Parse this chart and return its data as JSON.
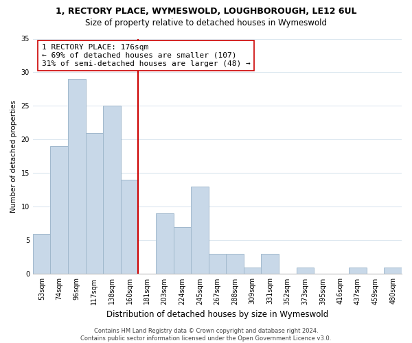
{
  "title": "1, RECTORY PLACE, WYMESWOLD, LOUGHBOROUGH, LE12 6UL",
  "subtitle": "Size of property relative to detached houses in Wymeswold",
  "xlabel": "Distribution of detached houses by size in Wymeswold",
  "ylabel": "Number of detached properties",
  "bar_color": "#c8d8e8",
  "bar_edge_color": "#a0b8cc",
  "bin_labels": [
    "53sqm",
    "74sqm",
    "96sqm",
    "117sqm",
    "138sqm",
    "160sqm",
    "181sqm",
    "203sqm",
    "224sqm",
    "245sqm",
    "267sqm",
    "288sqm",
    "309sqm",
    "331sqm",
    "352sqm",
    "373sqm",
    "395sqm",
    "416sqm",
    "437sqm",
    "459sqm",
    "480sqm"
  ],
  "bar_heights": [
    6,
    19,
    29,
    21,
    25,
    14,
    0,
    9,
    7,
    13,
    3,
    3,
    1,
    3,
    0,
    1,
    0,
    0,
    1,
    0,
    1
  ],
  "vline_x": 6,
  "vline_color": "#cc0000",
  "annotation_text": "1 RECTORY PLACE: 176sqm\n← 69% of detached houses are smaller (107)\n31% of semi-detached houses are larger (48) →",
  "annotation_box_color": "#ffffff",
  "annotation_box_edge": "#cc0000",
  "ylim": [
    0,
    35
  ],
  "yticks": [
    0,
    5,
    10,
    15,
    20,
    25,
    30,
    35
  ],
  "footer": "Contains HM Land Registry data © Crown copyright and database right 2024.\nContains public sector information licensed under the Open Government Licence v3.0.",
  "background_color": "#ffffff",
  "grid_color": "#dde8f0",
  "title_fontsize": 9,
  "subtitle_fontsize": 8.5,
  "xlabel_fontsize": 8.5,
  "ylabel_fontsize": 7.5,
  "tick_fontsize": 7,
  "annotation_fontsize": 8,
  "footer_fontsize": 6
}
